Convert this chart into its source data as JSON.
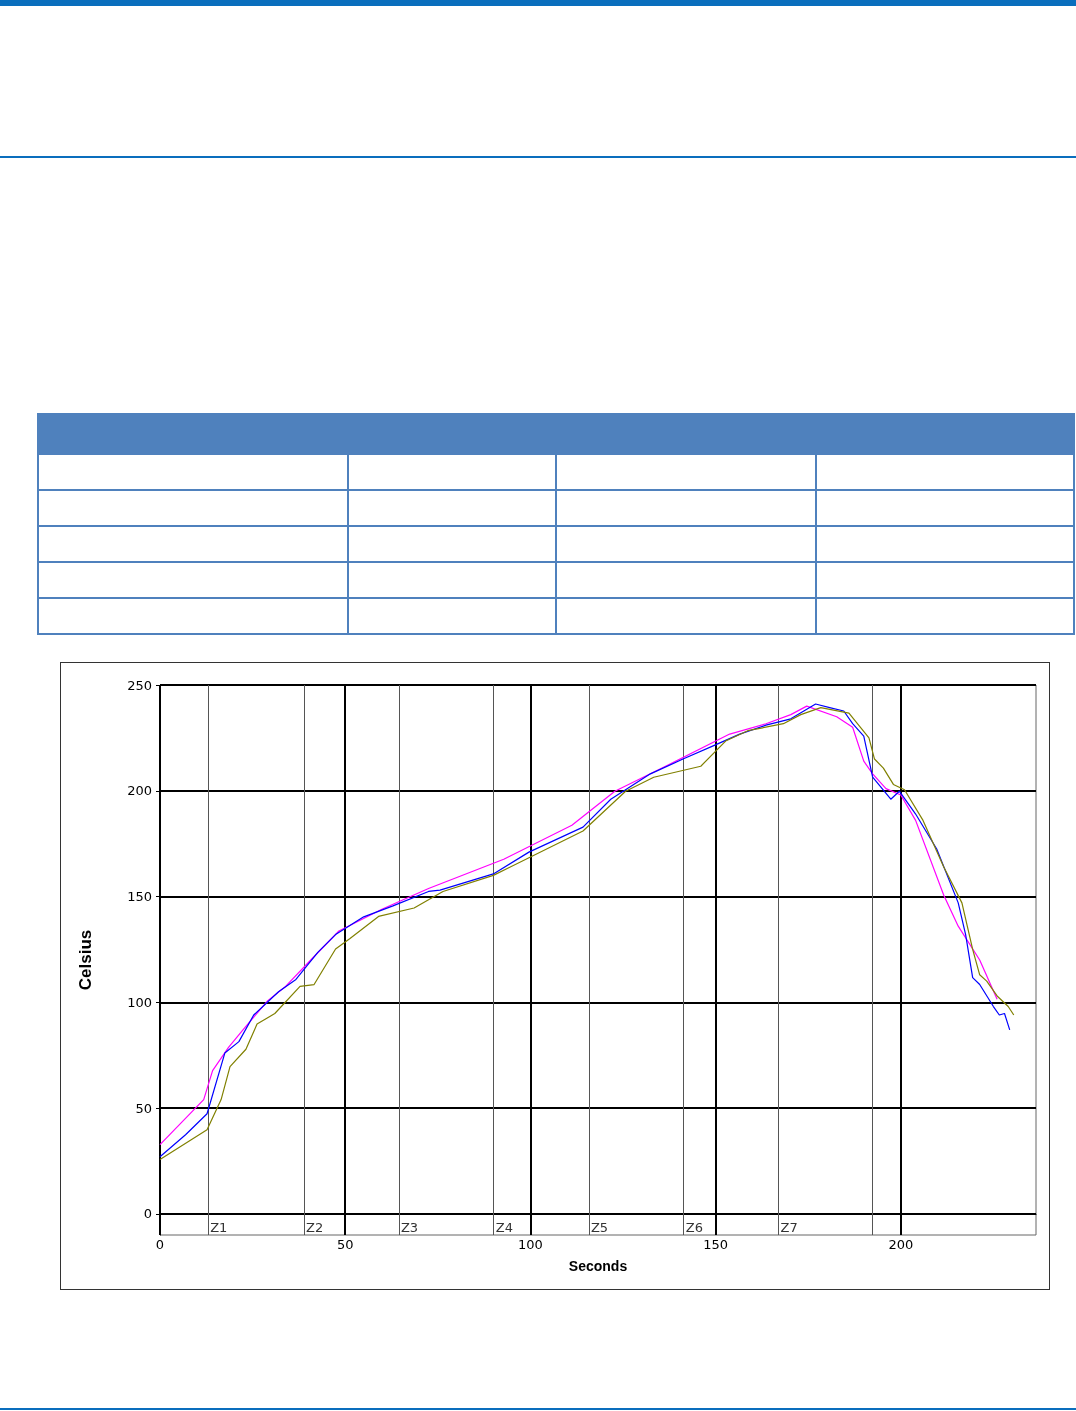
{
  "chart_data": {
    "type": "line",
    "xlabel": "Seconds",
    "ylabel": "Celsius",
    "xlim": [
      0,
      236.5
    ],
    "xticks": [
      0,
      50,
      100,
      150,
      200
    ],
    "ylim": [
      -10,
      250
    ],
    "yticks": [
      0,
      50,
      100,
      150,
      200,
      250
    ],
    "grid": true,
    "ref_lines": [
      {
        "axis": "x",
        "value": 13,
        "label": "Z1",
        "color": "#555555"
      },
      {
        "axis": "x",
        "value": 38.9,
        "label": "Z2",
        "color": "#555555"
      },
      {
        "axis": "x",
        "value": 64.5,
        "label": "Z3",
        "color": "#555555"
      },
      {
        "axis": "x",
        "value": 90.1,
        "label": "Z4",
        "color": "#555555"
      },
      {
        "axis": "x",
        "value": 115.8,
        "label": "Z5",
        "color": "#555555"
      },
      {
        "axis": "x",
        "value": 141.4,
        "label": "Z6",
        "color": "#555555"
      },
      {
        "axis": "x",
        "value": 167,
        "label": "Z7",
        "color": "#555555"
      },
      {
        "axis": "x",
        "value": 192.4,
        "label": null,
        "color": "#555555"
      }
    ],
    "series": [
      {
        "color": "#ff00ff",
        "x": [
          0,
          11.8,
          14.2,
          18.5,
          22.4,
          29.1,
          33.9,
          40.7,
          48.3,
          59.9,
          72.5,
          92.8,
          111.2,
          122.8,
          137.3,
          153.8,
          163.6,
          170.3,
          174.6,
          182.7,
          187,
          190,
          192.4,
          196,
          200,
          204,
          211.6,
          215.5,
          221.3,
          226
        ],
        "values": [
          32.7,
          54,
          67.7,
          78.7,
          87,
          100.8,
          107.5,
          120,
          133.7,
          144,
          153.8,
          167.6,
          183.7,
          199.8,
          212.3,
          226.8,
          231.7,
          236,
          240,
          235,
          230,
          214,
          208,
          201,
          198,
          186,
          150.6,
          136,
          120,
          101.5
        ]
      },
      {
        "color": "#0000ff",
        "x": [
          0,
          6.9,
          12.7,
          17.5,
          21.3,
          25.3,
          32,
          36.7,
          42.6,
          47.4,
          55,
          62.9,
          72.5,
          75.6,
          90,
          99.6,
          114.2,
          121.7,
          132.4,
          141.2,
          149.8,
          156.5,
          163.6,
          170.3,
          177,
          180.8,
          184.6,
          187,
          190,
          192.4,
          197.3,
          199.6,
          204,
          209.7,
          215.5,
          217.5,
          219.4,
          221.3,
          225,
          226.6,
          228,
          229.4
        ],
        "values": [
          27,
          37.4,
          47.3,
          76,
          81.4,
          94,
          105,
          110.8,
          123.6,
          132,
          140.4,
          145.6,
          152.4,
          153,
          160.7,
          171,
          182.8,
          196,
          208,
          215,
          221.6,
          226.8,
          231,
          234,
          241,
          239.3,
          237.7,
          231.7,
          225.8,
          206.4,
          196,
          199.8,
          189,
          172.5,
          147,
          132,
          111.7,
          108.4,
          98,
          94,
          94.7,
          87
        ]
      },
      {
        "color": "#808000",
        "x": [
          0,
          12.7,
          16.5,
          18.9,
          23.2,
          26.2,
          31,
          37.8,
          41.6,
          47.4,
          51.3,
          59,
          68.6,
          76.4,
          90,
          114.2,
          125.7,
          133.3,
          146,
          152.7,
          158.7,
          168.3,
          173,
          178.4,
          186,
          191.4,
          192.9,
          195.3,
          198,
          201,
          206,
          211.6,
          216.5,
          219.4,
          221.3,
          223.2,
          226,
          229,
          230.5
        ],
        "values": [
          25.7,
          39.8,
          54,
          69.6,
          77.8,
          89.7,
          94.7,
          107.5,
          108.4,
          125.2,
          130.2,
          140.6,
          144.6,
          152.4,
          160,
          181,
          199.8,
          206.4,
          211.6,
          223.5,
          228.4,
          231.7,
          236,
          239.3,
          236.7,
          225,
          215,
          210.7,
          203,
          200.5,
          186,
          164,
          147,
          125,
          113,
          110,
          103,
          98,
          94
        ]
      }
    ]
  }
}
